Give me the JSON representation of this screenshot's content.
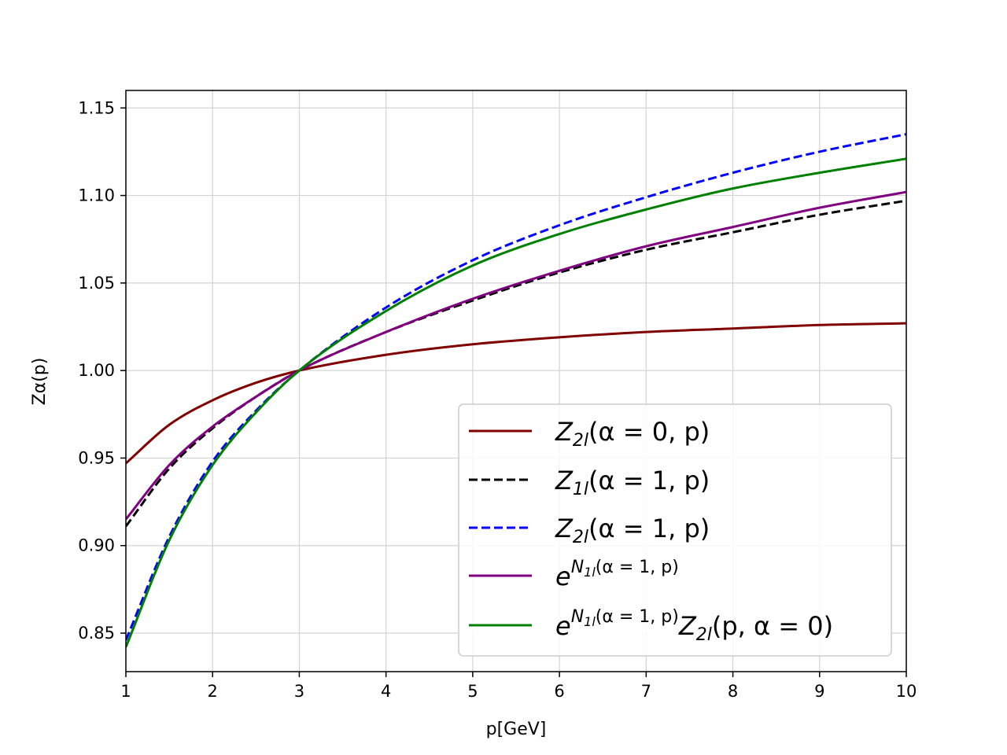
{
  "chart_data": {
    "type": "line",
    "xlabel": "p[GeV]",
    "ylabel": "Zα(p)",
    "xlim": [
      1,
      10
    ],
    "ylim": [
      0.828,
      1.16
    ],
    "xticks": [
      1,
      2,
      3,
      4,
      5,
      6,
      7,
      8,
      9,
      10
    ],
    "xtick_labels": [
      "1",
      "2",
      "3",
      "4",
      "5",
      "6",
      "7",
      "8",
      "9",
      "10"
    ],
    "yticks": [
      0.85,
      0.9,
      0.95,
      1.0,
      1.05,
      1.1,
      1.15
    ],
    "ytick_labels": [
      "0.85",
      "0.90",
      "0.95",
      "1.00",
      "1.05",
      "1.10",
      "1.15"
    ],
    "grid": true,
    "legend_position": "lower-right",
    "series": [
      {
        "key": "z2l_a0",
        "color": "#800000",
        "dash": "solid",
        "legend": {
          "base": "Z",
          "sub": "2l",
          "rest": "(α = 0, p)"
        },
        "x": [
          1,
          1.5,
          2,
          2.5,
          3,
          4,
          5,
          6,
          7,
          8,
          9,
          10
        ],
        "y": [
          0.947,
          0.969,
          0.983,
          0.993,
          1.0,
          1.009,
          1.015,
          1.019,
          1.022,
          1.024,
          1.026,
          1.027
        ]
      },
      {
        "key": "z1l_a1",
        "color": "#000000",
        "dash": "dashed",
        "legend": {
          "base": "Z",
          "sub": "1l",
          "rest": "(α = 1, p)"
        },
        "x": [
          1,
          1.5,
          2,
          2.5,
          3,
          4,
          5,
          6,
          7,
          8,
          9,
          10
        ],
        "y": [
          0.911,
          0.944,
          0.967,
          0.985,
          1.0,
          1.022,
          1.04,
          1.056,
          1.069,
          1.079,
          1.089,
          1.097
        ]
      },
      {
        "key": "z2l_a1",
        "color": "#0000ff",
        "dash": "dashed",
        "legend": {
          "base": "Z",
          "sub": "2l",
          "rest": "(α = 1, p)"
        },
        "x": [
          1,
          1.5,
          2,
          2.5,
          3,
          4,
          5,
          6,
          7,
          8,
          9,
          10
        ],
        "y": [
          0.846,
          0.905,
          0.948,
          0.977,
          1.0,
          1.036,
          1.063,
          1.083,
          1.099,
          1.113,
          1.125,
          1.135
        ]
      },
      {
        "key": "exp_n1l",
        "color": "#800080",
        "dash": "solid",
        "legend": {
          "base": "e",
          "sup": "N",
          "supsub": "1l",
          "suprest": "(α = 1, p)",
          "rest": ""
        },
        "x": [
          1,
          1.5,
          2,
          2.5,
          3,
          4,
          5,
          6,
          7,
          8,
          9,
          10
        ],
        "y": [
          0.915,
          0.946,
          0.968,
          0.985,
          1.0,
          1.022,
          1.041,
          1.057,
          1.071,
          1.082,
          1.093,
          1.102
        ]
      },
      {
        "key": "exp_n1l_z2l",
        "color": "#008000",
        "dash": "solid",
        "legend": {
          "base": "e",
          "sup": "N",
          "supsub": "1l",
          "suprest": "(α = 1, p)",
          "rest": "Z",
          "restsub": "2l",
          "rest2": "(p, α = 0)"
        },
        "x": [
          1,
          1.5,
          2,
          2.5,
          3,
          4,
          5,
          6,
          7,
          8,
          9,
          10
        ],
        "y": [
          0.842,
          0.903,
          0.946,
          0.976,
          1.0,
          1.034,
          1.06,
          1.078,
          1.092,
          1.104,
          1.113,
          1.121
        ]
      }
    ]
  }
}
